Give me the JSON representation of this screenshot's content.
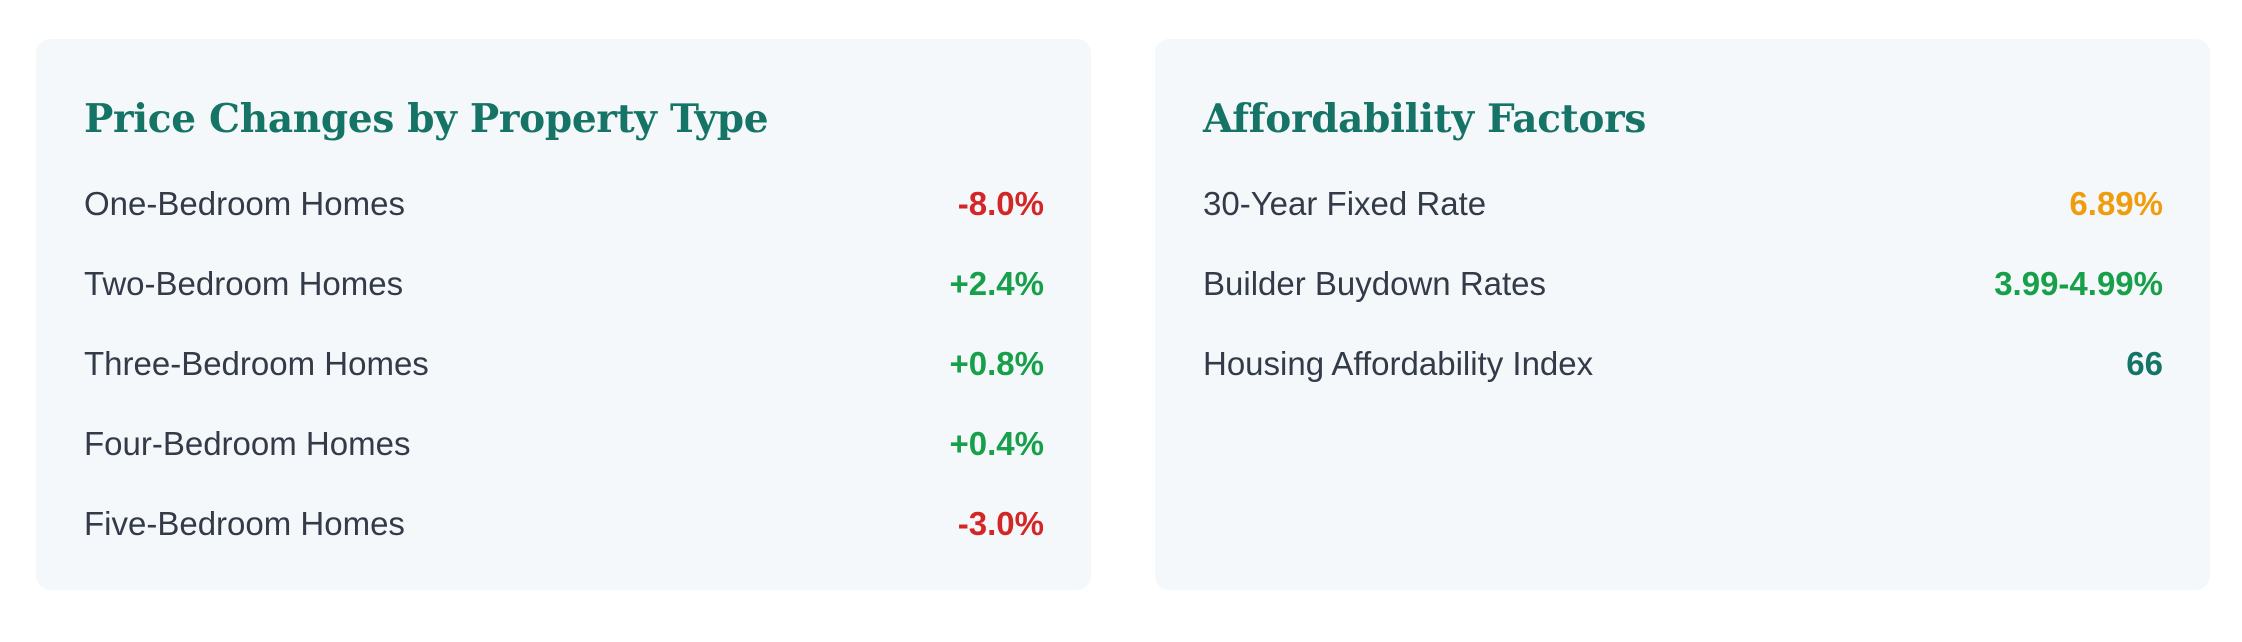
{
  "colors": {
    "title": "#157466",
    "label": "#333a48",
    "negative": "#d32626",
    "positive": "#17a049",
    "warning": "#ef9d0c",
    "neutral": "#157466"
  },
  "price_changes": {
    "title": "Price Changes by Property Type",
    "rows": [
      {
        "label": "One-Bedroom Homes",
        "value": "-8.0%",
        "status": "negative"
      },
      {
        "label": "Two-Bedroom Homes",
        "value": "+2.4%",
        "status": "positive"
      },
      {
        "label": "Three-Bedroom Homes",
        "value": "+0.8%",
        "status": "positive"
      },
      {
        "label": "Four-Bedroom Homes",
        "value": "+0.4%",
        "status": "positive"
      },
      {
        "label": "Five-Bedroom Homes",
        "value": "-3.0%",
        "status": "negative"
      }
    ]
  },
  "affordability": {
    "title": "Affordability Factors",
    "rows": [
      {
        "label": "30-Year Fixed Rate",
        "value": "6.89%",
        "status": "warning"
      },
      {
        "label": "Builder Buydown Rates",
        "value": "3.99-4.99%",
        "status": "positive"
      },
      {
        "label": "Housing Affordability Index",
        "value": "66",
        "status": "neutral"
      }
    ]
  }
}
